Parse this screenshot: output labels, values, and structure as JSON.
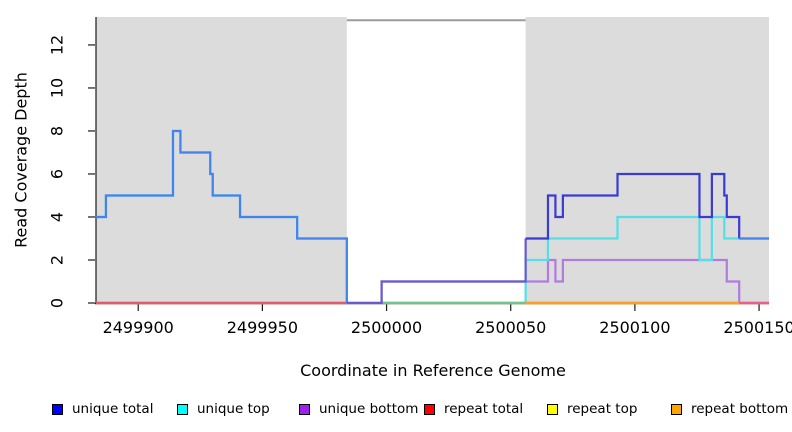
{
  "chart_data": {
    "type": "line",
    "subtype": "step-coverage",
    "title": "",
    "xlabel": "Coordinate in Reference Genome",
    "ylabel": "Read Coverage Depth",
    "xlim": [
      2499883,
      2500154
    ],
    "ylim": [
      0,
      13.3
    ],
    "x_ticks": [
      2499900,
      2499950,
      2500000,
      2500050,
      2500100,
      2500150
    ],
    "y_ticks": [
      0,
      2,
      4,
      6,
      8,
      10,
      12
    ],
    "grid": false,
    "legend_position": "bottom",
    "background_color": "#ffffff",
    "shaded_regions": [
      {
        "x0": 2499883,
        "x1": 2499984,
        "color": "#dcdcdc"
      },
      {
        "x0": 2500056,
        "x1": 2500154,
        "color": "#dcdcdc"
      }
    ],
    "gap_marker": {
      "x0": 2499984,
      "x1": 2500056,
      "y": 13.15,
      "color": "#9c9c9c"
    },
    "series": [
      {
        "name": "unique total",
        "legend_color": "#0000ff",
        "line_color": "#3a3ad4",
        "steps": [
          [
            2499883,
            4
          ],
          [
            2499887,
            5
          ],
          [
            2499914,
            8
          ],
          [
            2499917,
            7
          ],
          [
            2499929,
            6
          ],
          [
            2499930,
            5
          ],
          [
            2499941,
            4
          ],
          [
            2499964,
            3
          ],
          [
            2499984,
            0
          ],
          [
            2499998,
            1
          ],
          [
            2500056,
            3
          ],
          [
            2500065,
            5
          ],
          [
            2500068,
            4
          ],
          [
            2500071,
            5
          ],
          [
            2500093,
            6
          ],
          [
            2500126,
            4
          ],
          [
            2500131,
            6
          ],
          [
            2500136,
            5
          ],
          [
            2500137,
            4
          ],
          [
            2500142,
            3
          ]
        ],
        "x_end": 2500154,
        "color_segments": [
          {
            "x0": 2499883,
            "x1": 2499984,
            "color": "#4483ee"
          },
          {
            "x0": 2499984,
            "x1": 2500056,
            "color": "#6a5acd"
          },
          {
            "x0": 2500056,
            "x1": 2500142,
            "color": "#3a3ad4"
          },
          {
            "x0": 2500142,
            "x1": 2500154,
            "color": "#4483ee"
          }
        ]
      },
      {
        "name": "unique top",
        "legend_color": "#00ffff",
        "line_color": "#52e0e6",
        "steps": [
          [
            2499883,
            4
          ],
          [
            2499887,
            5
          ],
          [
            2499914,
            8
          ],
          [
            2499917,
            7
          ],
          [
            2499929,
            6
          ],
          [
            2499930,
            5
          ],
          [
            2499941,
            4
          ],
          [
            2499964,
            3
          ],
          [
            2499984,
            0
          ],
          [
            2500056,
            2
          ],
          [
            2500065,
            3
          ],
          [
            2500093,
            4
          ],
          [
            2500126,
            2
          ],
          [
            2500131,
            4
          ],
          [
            2500136,
            3
          ]
        ],
        "x_end": 2500154
      },
      {
        "name": "unique bottom",
        "legend_color": "#a020f0",
        "line_color": "#af7bdc",
        "steps": [
          [
            2499883,
            0
          ],
          [
            2499998,
            1
          ],
          [
            2500065,
            2
          ],
          [
            2500068,
            1
          ],
          [
            2500071,
            2
          ],
          [
            2500137,
            1
          ],
          [
            2500142,
            0
          ]
        ],
        "x_end": 2500154
      },
      {
        "name": "repeat total",
        "legend_color": "#ff0000",
        "line_color": "#e25971",
        "steps": [
          [
            2499883,
            0
          ]
        ],
        "x_end": 2500154
      },
      {
        "name": "repeat top",
        "legend_color": "#ffff00",
        "line_color": "#ffff00",
        "steps": [
          [
            2499883,
            0
          ]
        ],
        "x_end": 2500154
      },
      {
        "name": "repeat bottom",
        "legend_color": "#ffa500",
        "line_color": "#ff9d24",
        "steps": [
          [
            2499883,
            0
          ]
        ],
        "x_end": 2500154
      }
    ],
    "baseline_render": [
      {
        "x0": 2499883,
        "x1": 2499984,
        "color": "#e25971"
      },
      {
        "x0": 2499998,
        "x1": 2500056,
        "color": "#6fc393"
      },
      {
        "x0": 2500056,
        "x1": 2500142,
        "color": "#ff9d24"
      },
      {
        "x0": 2500142,
        "x1": 2500154,
        "color": "#ed5c92"
      }
    ],
    "legend": {
      "entries": [
        {
          "label": "unique total",
          "fill": "#0000ff"
        },
        {
          "label": "unique top",
          "fill": "#00ffff"
        },
        {
          "label": "unique bottom",
          "fill": "#a020f0"
        },
        {
          "label": "repeat total",
          "fill": "#ff0000"
        },
        {
          "label": "repeat top",
          "fill": "#ffff00"
        },
        {
          "label": "repeat bottom",
          "fill": "#ffa500"
        }
      ]
    }
  }
}
